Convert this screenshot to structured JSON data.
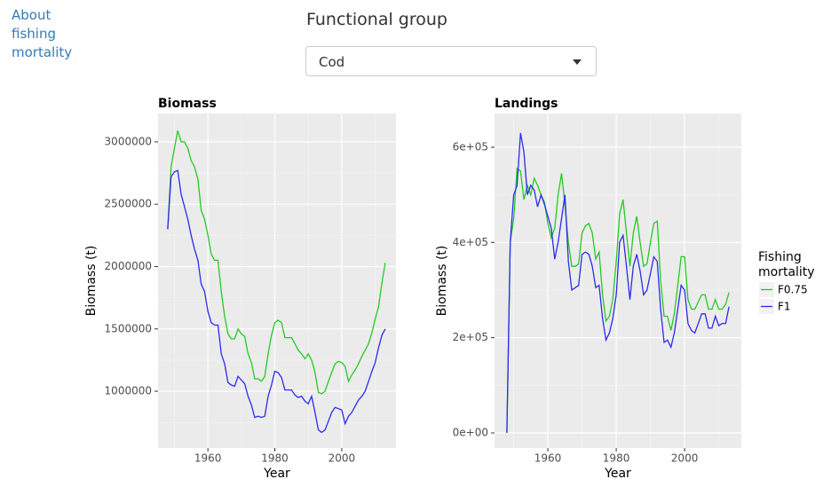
{
  "nav": {
    "link": "About fishing mortality"
  },
  "control": {
    "label": "Functional group",
    "selected": "Cod"
  },
  "chart_data": [
    {
      "type": "line",
      "title": "Biomass",
      "x_label": "Year",
      "y_label": "Biomass (t)",
      "x": [
        1948,
        1949,
        1950,
        1951,
        1952,
        1953,
        1954,
        1955,
        1956,
        1957,
        1958,
        1959,
        1960,
        1961,
        1962,
        1963,
        1964,
        1965,
        1966,
        1967,
        1968,
        1969,
        1970,
        1971,
        1972,
        1973,
        1974,
        1975,
        1976,
        1977,
        1978,
        1979,
        1980,
        1981,
        1982,
        1983,
        1984,
        1985,
        1986,
        1987,
        1988,
        1989,
        1990,
        1991,
        1992,
        1993,
        1994,
        1995,
        1996,
        1997,
        1998,
        1999,
        2000,
        2001,
        2002,
        2003,
        2004,
        2005,
        2006,
        2007,
        2008,
        2009,
        2010,
        2011,
        2012,
        2013
      ],
      "series": [
        {
          "color": "#22cc22",
          "values": [
            2300000,
            2800000,
            2950000,
            3090000,
            3000000,
            3000000,
            2950000,
            2850000,
            2800000,
            2700000,
            2450000,
            2380000,
            2250000,
            2100000,
            2050000,
            2050000,
            1800000,
            1600000,
            1460000,
            1420000,
            1420000,
            1500000,
            1460000,
            1440000,
            1300000,
            1230000,
            1100000,
            1100000,
            1080000,
            1120000,
            1300000,
            1450000,
            1550000,
            1570000,
            1550000,
            1430000,
            1430000,
            1430000,
            1380000,
            1330000,
            1300000,
            1260000,
            1300000,
            1250000,
            1150000,
            990000,
            980000,
            1000000,
            1080000,
            1150000,
            1220000,
            1240000,
            1230000,
            1200000,
            1080000,
            1130000,
            1170000,
            1220000,
            1280000,
            1330000,
            1380000,
            1470000,
            1580000,
            1680000,
            1870000,
            2030000
          ]
        },
        {
          "color": "#2b2bef",
          "values": [
            2300000,
            2720000,
            2760000,
            2770000,
            2580000,
            2480000,
            2380000,
            2250000,
            2140000,
            2050000,
            1860000,
            1800000,
            1640000,
            1550000,
            1530000,
            1530000,
            1300000,
            1220000,
            1070000,
            1050000,
            1040000,
            1120000,
            1090000,
            1060000,
            960000,
            890000,
            790000,
            800000,
            790000,
            800000,
            960000,
            1050000,
            1160000,
            1150000,
            1110000,
            1010000,
            1010000,
            1010000,
            970000,
            950000,
            960000,
            920000,
            900000,
            960000,
            830000,
            690000,
            670000,
            690000,
            760000,
            830000,
            870000,
            860000,
            850000,
            740000,
            800000,
            830000,
            880000,
            930000,
            960000,
            1000000,
            1080000,
            1160000,
            1230000,
            1350000,
            1450000,
            1500000
          ]
        }
      ],
      "xlim": [
        1945.1,
        2016.2
      ],
      "ylim": [
        545000,
        3227000
      ],
      "xticks": [
        1960,
        1980,
        2000
      ],
      "yticks": [
        1000000,
        1500000,
        2000000,
        2500000,
        3000000
      ],
      "minor_xticks": [
        1950,
        1970,
        1990,
        2010
      ],
      "minor_yticks": [
        750000,
        1250000,
        1750000,
        2250000,
        2750000
      ],
      "grid": true
    },
    {
      "type": "line",
      "title": "Landings",
      "x_label": "Year",
      "y_label": "Biomass (t)",
      "x": [
        1948,
        1949,
        1950,
        1951,
        1952,
        1953,
        1954,
        1955,
        1956,
        1957,
        1958,
        1959,
        1960,
        1961,
        1962,
        1963,
        1964,
        1965,
        1966,
        1967,
        1968,
        1969,
        1970,
        1971,
        1972,
        1973,
        1974,
        1975,
        1976,
        1977,
        1978,
        1979,
        1980,
        1981,
        1982,
        1983,
        1984,
        1985,
        1986,
        1987,
        1988,
        1989,
        1990,
        1991,
        1992,
        1993,
        1994,
        1995,
        1996,
        1997,
        1998,
        1999,
        2000,
        2001,
        2002,
        2003,
        2004,
        2005,
        2006,
        2007,
        2008,
        2009,
        2010,
        2011,
        2012,
        2013
      ],
      "series": [
        {
          "name": "F0.75",
          "color": "#22cc22",
          "values": [
            0,
            400000,
            450000,
            555000,
            550000,
            490000,
            520000,
            500000,
            535000,
            520000,
            500000,
            485000,
            440000,
            410000,
            430000,
            500000,
            545000,
            480000,
            400000,
            350000,
            350000,
            355000,
            420000,
            435000,
            440000,
            420000,
            365000,
            380000,
            290000,
            235000,
            245000,
            280000,
            360000,
            460000,
            490000,
            420000,
            350000,
            420000,
            455000,
            400000,
            350000,
            355000,
            400000,
            440000,
            445000,
            320000,
            245000,
            245000,
            215000,
            250000,
            310000,
            370000,
            370000,
            280000,
            260000,
            260000,
            275000,
            290000,
            290000,
            260000,
            260000,
            280000,
            260000,
            260000,
            270000,
            295000
          ]
        },
        {
          "name": "F1",
          "color": "#2b2bef",
          "values": [
            0,
            400000,
            500000,
            520000,
            630000,
            590000,
            500000,
            520000,
            510000,
            475000,
            500000,
            480000,
            455000,
            430000,
            365000,
            400000,
            450000,
            500000,
            360000,
            300000,
            305000,
            310000,
            375000,
            380000,
            375000,
            350000,
            305000,
            310000,
            240000,
            195000,
            210000,
            240000,
            290000,
            400000,
            415000,
            350000,
            280000,
            350000,
            375000,
            340000,
            290000,
            300000,
            335000,
            370000,
            360000,
            260000,
            190000,
            195000,
            180000,
            210000,
            260000,
            310000,
            300000,
            230000,
            215000,
            210000,
            230000,
            250000,
            250000,
            220000,
            220000,
            245000,
            225000,
            230000,
            230000,
            265000
          ]
        }
      ],
      "xlim": [
        1944.4,
        2016.6
      ],
      "ylim": [
        -31700,
        670800
      ],
      "xticks": [
        1960,
        1980,
        2000
      ],
      "yticks": [
        {
          "value": 0,
          "label": "0e+00"
        },
        {
          "value": 200000,
          "label": "2e+05"
        },
        {
          "value": 400000,
          "label": "4e+05"
        },
        {
          "value": 600000,
          "label": "6e+05"
        }
      ],
      "minor_xticks": [
        1950,
        1970,
        1990,
        2010
      ],
      "minor_yticks": [
        100000,
        300000,
        500000
      ],
      "grid": true,
      "legend": {
        "title": "Fishing mortality",
        "position": "right"
      }
    }
  ]
}
